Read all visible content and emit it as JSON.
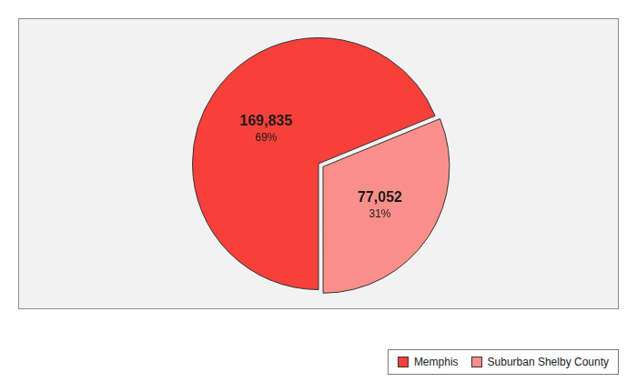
{
  "chart_data": {
    "type": "pie",
    "categories": [
      "Memphis",
      "Suburban Shelby County"
    ],
    "values": [
      169835,
      77052
    ],
    "value_labels": [
      "169,835",
      "77,052"
    ],
    "percentages": [
      69,
      31
    ],
    "percentage_labels": [
      "69%",
      "31%"
    ],
    "colors": [
      "#f7403a",
      "#f98f8a"
    ],
    "data_labels": true,
    "legend": "bottom-right"
  }
}
